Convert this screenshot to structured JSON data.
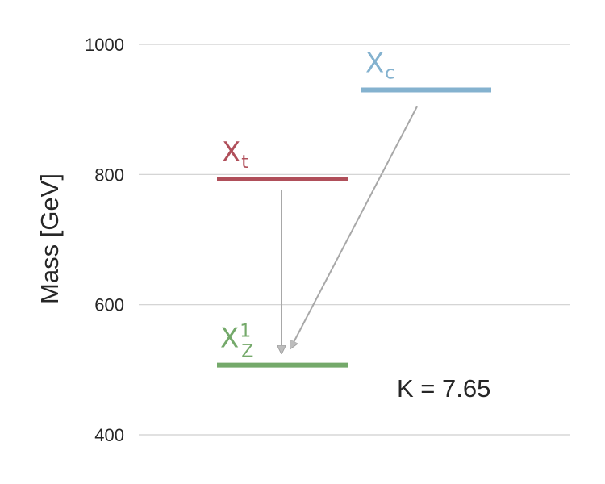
{
  "chart_data": {
    "type": "energy-level-diagram",
    "ylabel": "Mass [GeV]",
    "ylim": [
      400,
      1000
    ],
    "yticks": [
      400,
      600,
      800,
      1000
    ],
    "grid": true,
    "levels": [
      {
        "id": "xt",
        "label": "X",
        "label_sub": "t",
        "label_sup": "",
        "mass": 793,
        "color": "#b04f5a"
      },
      {
        "id": "xc",
        "label": "X",
        "label_sub": "c",
        "label_sup": "",
        "mass": 930,
        "color": "#84b2cf"
      },
      {
        "id": "xz",
        "label": "X",
        "label_sub": "Z",
        "label_sup": "1",
        "mass": 507,
        "color": "#74a96a"
      }
    ],
    "transitions": [
      {
        "from": "xt",
        "to": "xz"
      },
      {
        "from": "xc",
        "to": "xz"
      }
    ],
    "annotation": "K = 7.65"
  }
}
